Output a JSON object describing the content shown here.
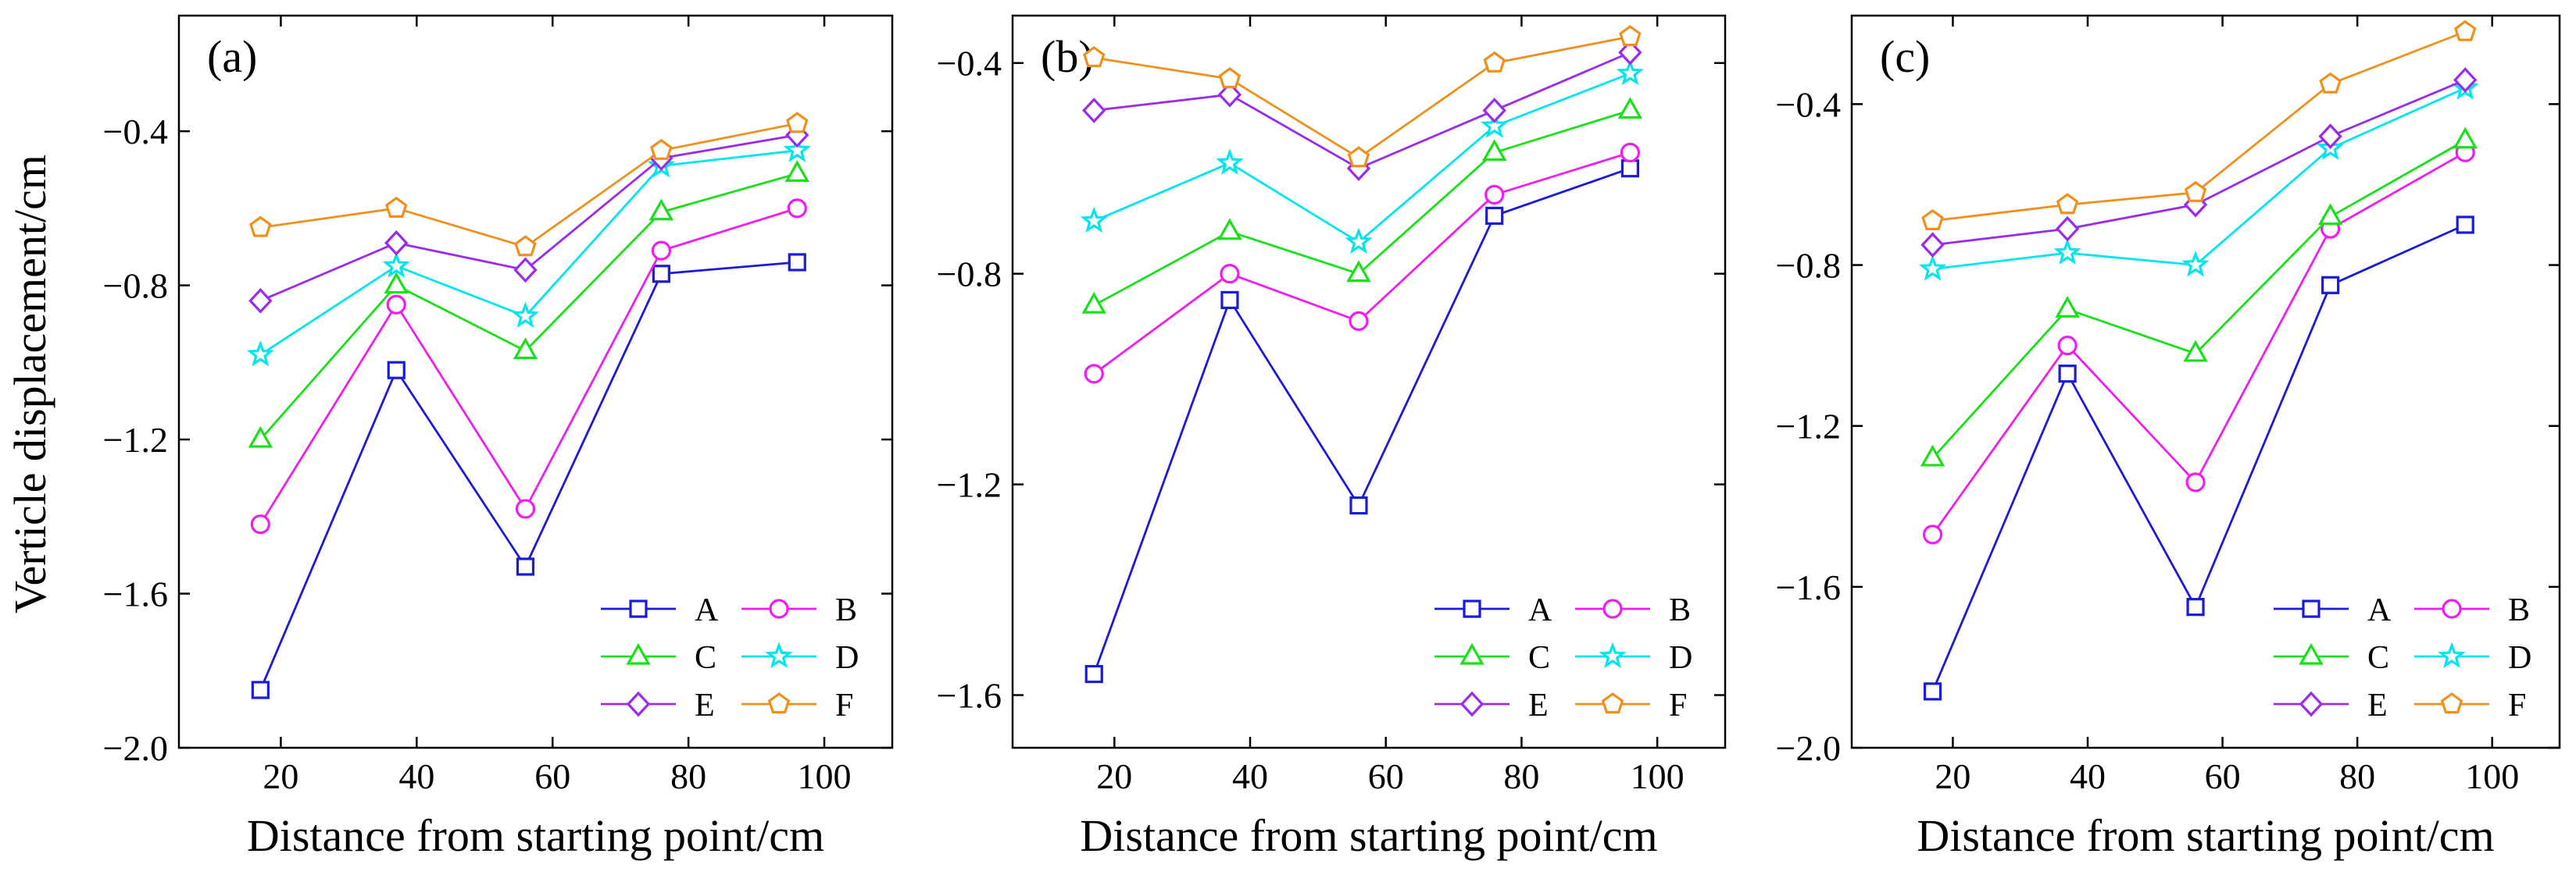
{
  "figure": {
    "ylabel": "Verticle displacement/cm",
    "xlabel": "Distance from starting point/cm"
  },
  "series_styles": [
    {
      "name": "A",
      "color": "#1a1adb",
      "marker": "square"
    },
    {
      "name": "B",
      "color": "#f01df0",
      "marker": "circle"
    },
    {
      "name": "C",
      "color": "#19e019",
      "marker": "triangle"
    },
    {
      "name": "D",
      "color": "#00e5ee",
      "marker": "star"
    },
    {
      "name": "E",
      "color": "#9a2bee",
      "marker": "diamond"
    },
    {
      "name": "F",
      "color": "#f0901c",
      "marker": "pentagon"
    }
  ],
  "chart_data": [
    {
      "type": "line",
      "panel": "(a)",
      "title": "",
      "xlabel": "Distance from starting point/cm",
      "ylabel": "Verticle displacement/cm",
      "xlim": [
        5,
        110
      ],
      "ylim": [
        -2.0,
        -0.1
      ],
      "xticks": [
        20,
        40,
        60,
        80,
        100
      ],
      "xtick_labels": [
        "20",
        "40",
        "60",
        "80",
        "100"
      ],
      "yticks": [
        -2.0,
        -1.6,
        -1.2,
        -0.8,
        -0.4
      ],
      "ytick_labels": [
        "−2.0",
        "−1.6",
        "−1.2",
        "−0.8",
        "−0.4"
      ],
      "x": [
        17,
        37,
        56,
        76,
        96
      ],
      "legend": "bottom-right",
      "series": [
        {
          "name": "A",
          "values": [
            -1.85,
            -1.02,
            -1.53,
            -0.77,
            -0.74
          ]
        },
        {
          "name": "B",
          "values": [
            -1.42,
            -0.85,
            -1.38,
            -0.71,
            -0.6
          ]
        },
        {
          "name": "C",
          "values": [
            -1.2,
            -0.8,
            -0.97,
            -0.61,
            -0.51
          ]
        },
        {
          "name": "D",
          "values": [
            -0.98,
            -0.75,
            -0.88,
            -0.49,
            -0.45
          ]
        },
        {
          "name": "E",
          "values": [
            -0.84,
            -0.69,
            -0.76,
            -0.47,
            -0.41
          ]
        },
        {
          "name": "F",
          "values": [
            -0.65,
            -0.6,
            -0.7,
            -0.45,
            -0.38
          ]
        }
      ]
    },
    {
      "type": "line",
      "panel": "(b)",
      "title": "",
      "xlabel": "Distance from starting point/cm",
      "ylabel": "",
      "xlim": [
        5,
        110
      ],
      "ylim": [
        -1.7,
        -0.31
      ],
      "xticks": [
        20,
        40,
        60,
        80,
        100
      ],
      "xtick_labels": [
        "20",
        "40",
        "60",
        "80",
        "100"
      ],
      "yticks": [
        -1.6,
        -1.2,
        -0.8,
        -0.4
      ],
      "ytick_labels": [
        "−1.6",
        "−1.2",
        "−0.8",
        "−0.4"
      ],
      "x": [
        17,
        37,
        56,
        76,
        96
      ],
      "legend": "bottom-right",
      "series": [
        {
          "name": "A",
          "values": [
            -1.56,
            -0.85,
            -1.24,
            -0.69,
            -0.6
          ]
        },
        {
          "name": "B",
          "values": [
            -0.99,
            -0.8,
            -0.89,
            -0.65,
            -0.57
          ]
        },
        {
          "name": "C",
          "values": [
            -0.86,
            -0.72,
            -0.8,
            -0.57,
            -0.49
          ]
        },
        {
          "name": "D",
          "values": [
            -0.7,
            -0.59,
            -0.74,
            -0.52,
            -0.42
          ]
        },
        {
          "name": "E",
          "values": [
            -0.49,
            -0.46,
            -0.6,
            -0.49,
            -0.38
          ]
        },
        {
          "name": "F",
          "values": [
            -0.39,
            -0.43,
            -0.58,
            -0.4,
            -0.35
          ]
        }
      ]
    },
    {
      "type": "line",
      "panel": "(c)",
      "title": "",
      "xlabel": "Distance from starting point/cm",
      "ylabel": "",
      "xlim": [
        5,
        110
      ],
      "ylim": [
        -2.0,
        -0.18
      ],
      "xticks": [
        20,
        40,
        60,
        80,
        100
      ],
      "xtick_labels": [
        "20",
        "40",
        "60",
        "80",
        "100"
      ],
      "yticks": [
        -2.0,
        -1.6,
        -1.2,
        -0.8,
        -0.4
      ],
      "ytick_labels": [
        "−2.0",
        "−1.6",
        "−1.2",
        "−0.8",
        "−0.4"
      ],
      "x": [
        17,
        37,
        56,
        76,
        96
      ],
      "legend": "bottom-right",
      "series": [
        {
          "name": "A",
          "values": [
            -1.86,
            -1.07,
            -1.65,
            -0.85,
            -0.7
          ]
        },
        {
          "name": "B",
          "values": [
            -1.47,
            -1.0,
            -1.34,
            -0.71,
            -0.52
          ]
        },
        {
          "name": "C",
          "values": [
            -1.28,
            -0.91,
            -1.02,
            -0.68,
            -0.49
          ]
        },
        {
          "name": "D",
          "values": [
            -0.81,
            -0.77,
            -0.8,
            -0.51,
            -0.36
          ]
        },
        {
          "name": "E",
          "values": [
            -0.75,
            -0.71,
            -0.65,
            -0.48,
            -0.34
          ]
        },
        {
          "name": "F",
          "values": [
            -0.69,
            -0.65,
            -0.62,
            -0.35,
            -0.22
          ]
        }
      ]
    }
  ]
}
